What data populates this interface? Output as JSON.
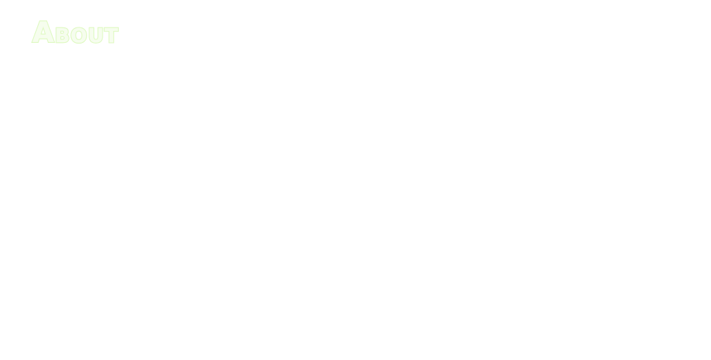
{
  "page": {
    "title": "About"
  },
  "colors": {
    "background": "#ffffff",
    "title_stroke": "#d9f7b8",
    "title_stroke_inner": "#e6fbcf",
    "title_fill": "#f6fdee"
  }
}
